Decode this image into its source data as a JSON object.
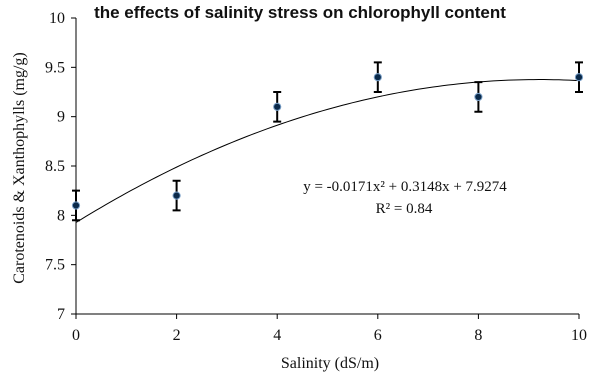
{
  "chart_data": {
    "type": "scatter",
    "title": "the effects of salinity stress on chlorophyll content",
    "xlabel": "Salinity (dS/m)",
    "ylabel": "Carotenoids & Xanthophylls (mg/g)",
    "xlim": [
      0,
      10
    ],
    "ylim": [
      7,
      10
    ],
    "x_ticks": [
      "0",
      "2",
      "4",
      "6",
      "8",
      "10"
    ],
    "y_ticks": [
      "7",
      "7.5",
      "8",
      "8.5",
      "9",
      "9.5",
      "10"
    ],
    "points": [
      {
        "x": 0,
        "y": 8.1,
        "err": 0.15
      },
      {
        "x": 2,
        "y": 8.2,
        "err": 0.15
      },
      {
        "x": 4,
        "y": 9.1,
        "err": 0.15
      },
      {
        "x": 6,
        "y": 9.4,
        "err": 0.15
      },
      {
        "x": 8,
        "y": 9.2,
        "err": 0.15
      },
      {
        "x": 10,
        "y": 9.4,
        "err": 0.15
      }
    ],
    "trendline": {
      "type": "polynomial",
      "a": -0.0171,
      "b": 0.3148,
      "c": 7.9274
    },
    "equation": "y = -0.0171x² + 0.3148x + 7.9274",
    "r_squared": "R² = 0.84",
    "grid": false,
    "legend": "none"
  }
}
